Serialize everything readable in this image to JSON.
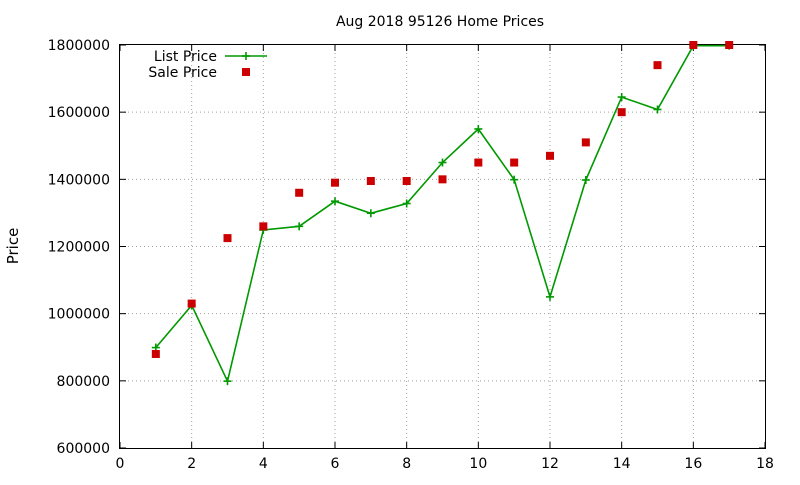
{
  "chart_data": {
    "type": "line",
    "title": "Aug 2018 95126 Home Prices",
    "xlabel": "",
    "ylabel": "Price",
    "xlim": [
      0,
      18
    ],
    "ylim": [
      600000,
      1800000
    ],
    "xticks": [
      "0",
      "2",
      "4",
      "6",
      "8",
      "10",
      "12",
      "14",
      "16",
      "18"
    ],
    "yticks": [
      "600000",
      "800000",
      "1000000",
      "1200000",
      "1400000",
      "1600000",
      "1800000"
    ],
    "grid": true,
    "legend": "top-left",
    "series": [
      {
        "name": "List Price",
        "style": "line-plus",
        "color": "#009900",
        "x": [
          1,
          2,
          3,
          4,
          5,
          6,
          7,
          8,
          9,
          10,
          11,
          12,
          13,
          14,
          15,
          16,
          17
        ],
        "y": [
          899000,
          1025000,
          799000,
          1249000,
          1260000,
          1335000,
          1299000,
          1328000,
          1450000,
          1550000,
          1399000,
          1050000,
          1398000,
          1645000,
          1608000,
          1798000,
          1798000
        ]
      },
      {
        "name": "Sale Price",
        "style": "square",
        "color": "#cc0000",
        "x": [
          1,
          2,
          3,
          4,
          5,
          6,
          7,
          8,
          9,
          10,
          11,
          12,
          13,
          14,
          15,
          16,
          17
        ],
        "y": [
          880000,
          1030000,
          1225000,
          1260000,
          1360000,
          1390000,
          1395000,
          1395000,
          1400000,
          1450000,
          1450000,
          1470000,
          1510000,
          1600000,
          1740000,
          1800000,
          1800000
        ]
      }
    ]
  }
}
